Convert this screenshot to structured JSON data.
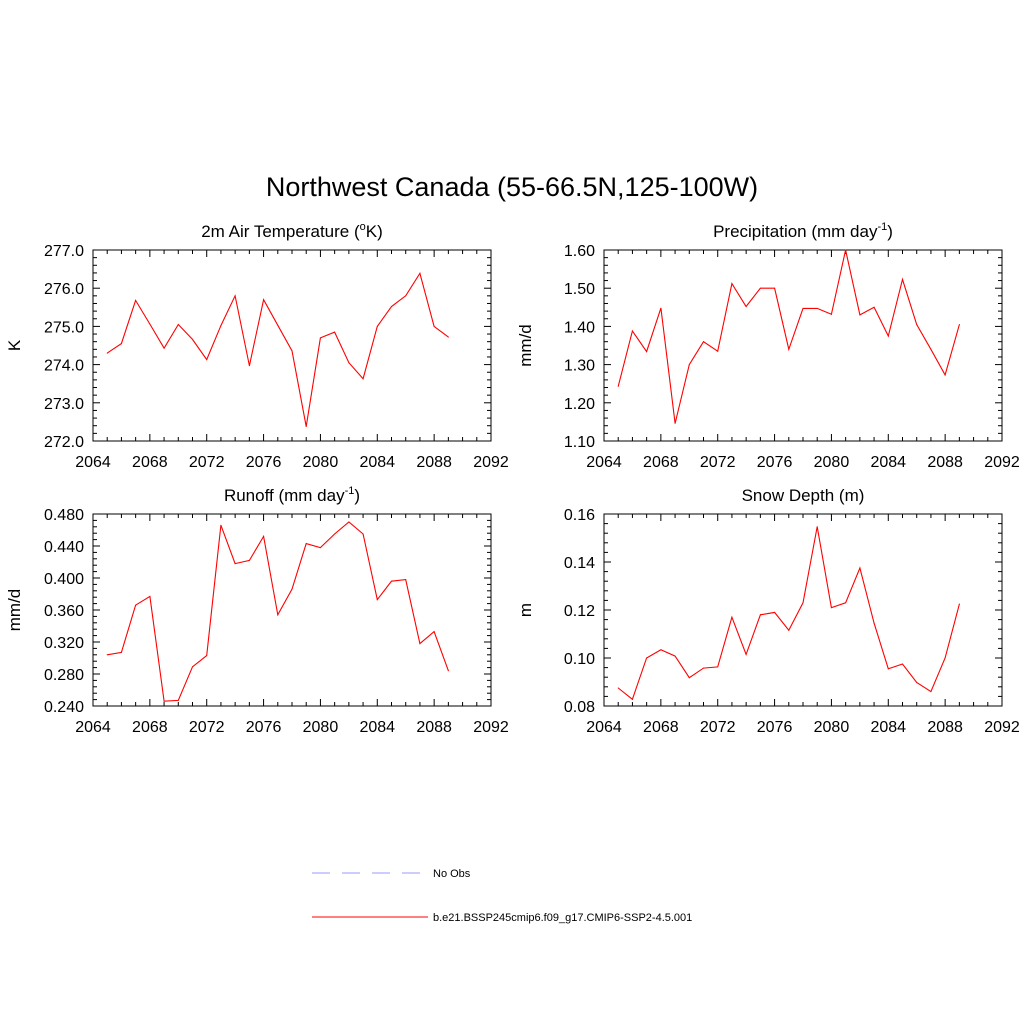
{
  "figure_title": "Northwest Canada (55-66.5N,125-100W)",
  "colors": {
    "model_line": "#ff0000",
    "obs_line": "#9999ff",
    "axis": "#000000"
  },
  "legend": [
    {
      "label": "No Obs",
      "style": "dashed",
      "color": "#9999ff"
    },
    {
      "label": "b.e21.BSSP245cmip6.f09_g17.CMIP6-SSP2-4.5.001",
      "style": "solid",
      "color": "#ff0000"
    }
  ],
  "chart_data": [
    {
      "type": "line",
      "title": "2m Air Temperature (",
      "title_sup": "o",
      "title_after": "K)",
      "ylabel": "K",
      "xlim": [
        2064,
        2092
      ],
      "ylim": [
        272.0,
        277.0
      ],
      "xticks": [
        "2064",
        "2068",
        "2072",
        "2076",
        "2080",
        "2084",
        "2088",
        "2092"
      ],
      "yticks": [
        "272.0",
        "273.0",
        "274.0",
        "275.0",
        "276.0",
        "277.0"
      ],
      "x": [
        2065,
        2066,
        2067,
        2068,
        2069,
        2070,
        2071,
        2072,
        2073,
        2074,
        2075,
        2076,
        2077,
        2078,
        2079,
        2080,
        2081,
        2082,
        2083,
        2084,
        2085,
        2086,
        2087,
        2088,
        2089
      ],
      "series": [
        {
          "values": [
            274.3,
            274.55,
            275.68,
            275.06,
            274.43,
            275.05,
            274.66,
            274.13,
            275.02,
            275.8,
            273.97,
            275.7,
            275.03,
            274.36,
            272.38,
            274.7,
            274.85,
            274.05,
            273.63,
            275.0,
            275.52,
            275.8,
            276.39,
            275.0,
            274.72
          ]
        }
      ]
    },
    {
      "type": "line",
      "title": "Precipitation (mm day",
      "title_sup": "-1",
      "title_after": ")",
      "ylabel": "mm/d",
      "xlim": [
        2064,
        2092
      ],
      "ylim": [
        1.1,
        1.6
      ],
      "xticks": [
        "2064",
        "2068",
        "2072",
        "2076",
        "2080",
        "2084",
        "2088",
        "2092"
      ],
      "yticks": [
        "1.10",
        "1.20",
        "1.30",
        "1.40",
        "1.50",
        "1.60"
      ],
      "x": [
        2065,
        2066,
        2067,
        2068,
        2069,
        2070,
        2071,
        2072,
        2073,
        2074,
        2075,
        2076,
        2077,
        2078,
        2079,
        2080,
        2081,
        2082,
        2083,
        2084,
        2085,
        2086,
        2087,
        2088,
        2089
      ],
      "series": [
        {
          "values": [
            1.243,
            1.388,
            1.334,
            1.448,
            1.146,
            1.3,
            1.36,
            1.335,
            1.512,
            1.452,
            1.5,
            1.5,
            1.34,
            1.447,
            1.447,
            1.432,
            1.6,
            1.43,
            1.45,
            1.375,
            1.523,
            1.405,
            1.34,
            1.273,
            1.405
          ]
        }
      ]
    },
    {
      "type": "line",
      "title": "Runoff (mm day",
      "title_sup": "-1",
      "title_after": ")",
      "ylabel": "mm/d",
      "xlim": [
        2064,
        2092
      ],
      "ylim": [
        0.24,
        0.48
      ],
      "xticks": [
        "2064",
        "2068",
        "2072",
        "2076",
        "2080",
        "2084",
        "2088",
        "2092"
      ],
      "yticks": [
        "0.240",
        "0.280",
        "0.320",
        "0.360",
        "0.400",
        "0.440",
        "0.480"
      ],
      "x": [
        2065,
        2066,
        2067,
        2068,
        2069,
        2070,
        2071,
        2072,
        2073,
        2074,
        2075,
        2076,
        2077,
        2078,
        2079,
        2080,
        2081,
        2082,
        2083,
        2084,
        2085,
        2086,
        2087,
        2088,
        2089
      ],
      "series": [
        {
          "values": [
            0.304,
            0.307,
            0.366,
            0.377,
            0.246,
            0.247,
            0.289,
            0.303,
            0.466,
            0.418,
            0.422,
            0.452,
            0.354,
            0.386,
            0.443,
            0.438,
            0.455,
            0.47,
            0.455,
            0.373,
            0.396,
            0.398,
            0.318,
            0.333,
            0.284
          ]
        }
      ]
    },
    {
      "type": "line",
      "title": "Snow Depth (m)",
      "title_sup": "",
      "title_after": "",
      "ylabel": "m",
      "xlim": [
        2064,
        2092
      ],
      "ylim": [
        0.08,
        0.16
      ],
      "xticks": [
        "2064",
        "2068",
        "2072",
        "2076",
        "2080",
        "2084",
        "2088",
        "2092"
      ],
      "yticks": [
        "0.08",
        "0.10",
        "0.12",
        "0.14",
        "0.16"
      ],
      "x": [
        2065,
        2066,
        2067,
        2068,
        2069,
        2070,
        2071,
        2072,
        2073,
        2074,
        2075,
        2076,
        2077,
        2078,
        2079,
        2080,
        2081,
        2082,
        2083,
        2084,
        2085,
        2086,
        2087,
        2088,
        2089
      ],
      "series": [
        {
          "values": [
            0.0875,
            0.0828,
            0.1,
            0.1034,
            0.1008,
            0.0918,
            0.0958,
            0.0963,
            0.117,
            0.1015,
            0.118,
            0.119,
            0.1116,
            0.123,
            0.1547,
            0.121,
            0.123,
            0.1375,
            0.1145,
            0.0955,
            0.0975,
            0.0898,
            0.086,
            0.1,
            0.1225
          ]
        }
      ]
    }
  ]
}
